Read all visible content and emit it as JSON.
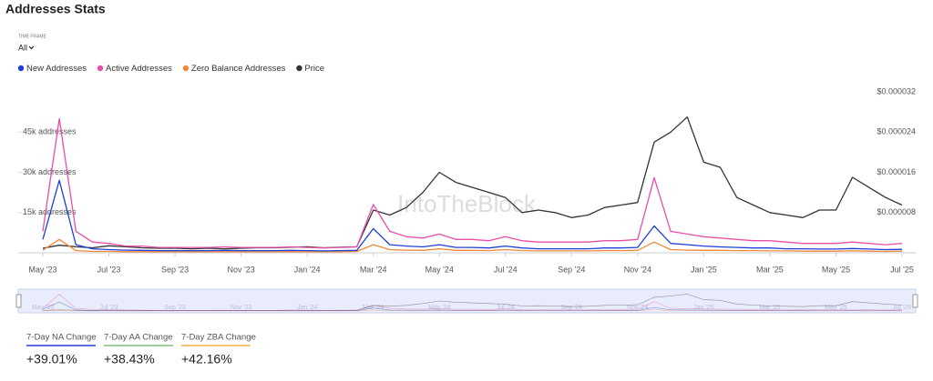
{
  "header": {
    "title": "Addresses Stats",
    "time_frame_label": "TIME FRAME",
    "time_frame_value": "All"
  },
  "watermark": "IntoTheBlock",
  "chart_data": {
    "type": "line",
    "categories": [
      "May '23",
      null,
      null,
      null,
      "Jul '23",
      null,
      null,
      null,
      "Sep '23",
      null,
      null,
      null,
      "Nov '23",
      null,
      null,
      null,
      "Jan '24",
      null,
      null,
      null,
      "Mar '24",
      null,
      null,
      null,
      "May '24",
      null,
      null,
      null,
      "Jul '24",
      null,
      null,
      null,
      "Sep '24",
      null,
      null,
      null,
      "Nov '24",
      null,
      null,
      null,
      "Jan '25",
      null,
      null,
      null,
      "Mar '25",
      null,
      null,
      null,
      "May '25",
      null,
      null,
      null,
      "Jul '25"
    ],
    "series": [
      {
        "name": "New Addresses",
        "color": "#1f3fd6",
        "values": [
          5000,
          27000,
          3000,
          1500,
          1200,
          1000,
          900,
          800,
          800,
          800,
          800,
          900,
          800,
          800,
          800,
          900,
          800,
          700,
          800,
          900,
          9000,
          3000,
          2500,
          2200,
          3000,
          2000,
          2000,
          1800,
          2500,
          1800,
          1500,
          1500,
          1500,
          1500,
          1800,
          1800,
          2000,
          10000,
          3500,
          3000,
          2500,
          2200,
          2000,
          1800,
          1800,
          1500,
          1500,
          1400,
          1400,
          1600,
          1400,
          1200,
          1300
        ]
      },
      {
        "name": "Active Addresses",
        "color": "#e94fa8",
        "values": [
          8000,
          50000,
          8000,
          4000,
          3500,
          2500,
          2500,
          2000,
          2000,
          2000,
          2000,
          2200,
          2000,
          2000,
          2000,
          2200,
          2000,
          1800,
          2000,
          2200,
          18000,
          8000,
          6000,
          5500,
          7000,
          5000,
          5000,
          4500,
          6000,
          4500,
          4000,
          4000,
          4000,
          4000,
          4500,
          4500,
          5000,
          28000,
          8000,
          7000,
          6000,
          5500,
          5000,
          4500,
          4500,
          4000,
          3500,
          3500,
          3500,
          4000,
          3500,
          3000,
          3500
        ]
      },
      {
        "name": "Zero Balance Addresses",
        "color": "#f0883a",
        "values": [
          1000,
          5000,
          800,
          500,
          500,
          400,
          400,
          400,
          400,
          400,
          400,
          400,
          400,
          400,
          400,
          400,
          400,
          400,
          400,
          500,
          3000,
          1200,
          1000,
          900,
          1500,
          900,
          900,
          800,
          1200,
          800,
          700,
          700,
          700,
          700,
          800,
          800,
          900,
          4000,
          1200,
          1000,
          900,
          900,
          800,
          800,
          700,
          700,
          600,
          600,
          600,
          700,
          600,
          500,
          600
        ]
      },
      {
        "name": "Price",
        "color": "#333333",
        "axis": "y2",
        "values": [
          9e-07,
          1.5e-06,
          1.2e-06,
          1e-06,
          1.4e-06,
          1.2e-06,
          1e-06,
          9e-07,
          9e-07,
          8e-07,
          9e-07,
          8e-07,
          9e-07,
          1e-06,
          1e-06,
          1.1e-06,
          1.2e-06,
          1e-06,
          1.1e-06,
          1.2e-06,
          8.5e-06,
          7.5e-06,
          9e-06,
          1.2e-05,
          1.6e-05,
          1.4e-05,
          1.3e-05,
          1.2e-05,
          1.1e-05,
          8e-06,
          8.5e-06,
          8e-06,
          7e-06,
          7.5e-06,
          9e-06,
          9.5e-06,
          1e-05,
          2.2e-05,
          2.4e-05,
          2.7e-05,
          1.8e-05,
          1.7e-05,
          1.1e-05,
          9.5e-06,
          8e-06,
          7.5e-06,
          7e-06,
          8.5e-06,
          8.5e-06,
          1.5e-05,
          1.3e-05,
          1.1e-05,
          9.5e-06
        ]
      }
    ],
    "ylim": [
      0,
      60000
    ],
    "yticks": [
      {
        "value": 15000,
        "label": "15k addresses"
      },
      {
        "value": 30000,
        "label": "30k addresses"
      },
      {
        "value": 45000,
        "label": "45k addresses"
      }
    ],
    "y2lim": [
      0,
      3.2e-05
    ],
    "y2ticks": [
      {
        "value": 8e-06,
        "label": "$0.000008"
      },
      {
        "value": 1.6e-05,
        "label": "$0.000016"
      },
      {
        "value": 2.4e-05,
        "label": "$0.000024"
      },
      {
        "value": 3.2e-05,
        "label": "$0.000032"
      }
    ],
    "grid": false
  },
  "stats": [
    {
      "label": "7-Day NA Change",
      "value": "+39.01%",
      "color": "#1f3fd6"
    },
    {
      "label": "7-Day AA Change",
      "value": "+38.43%",
      "color": "#7bc47f"
    },
    {
      "label": "7-Day ZBA Change",
      "value": "+42.16%",
      "color": "#f0b04a"
    }
  ]
}
